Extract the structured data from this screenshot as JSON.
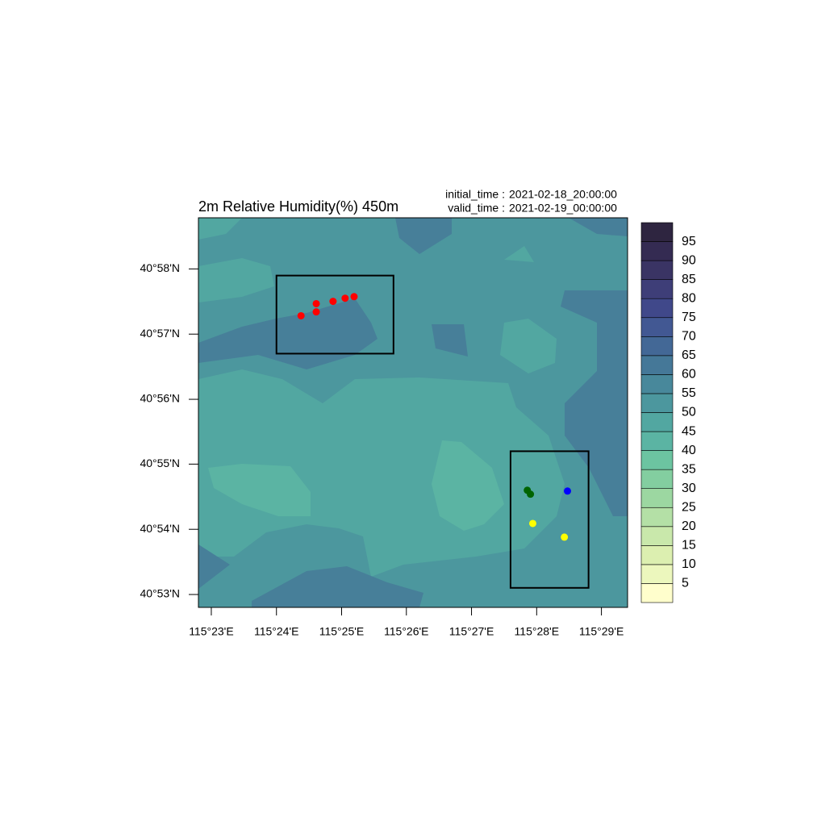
{
  "map": {
    "title": "2m Relative Humidity(%) 450m",
    "initial_time_label": "initial_time :",
    "initial_time": "2021-02-18_20:00:00",
    "valid_time_label": "valid_time  :",
    "valid_time": "2021-02-19_00:00:00",
    "lonlim": [
      115.38,
      115.49
    ],
    "latlim": [
      40.88,
      40.9798
    ],
    "xticks": [
      {
        "value": 115.3833,
        "label": "115°23'E"
      },
      {
        "value": 115.4,
        "label": "115°24'E"
      },
      {
        "value": 115.4167,
        "label": "115°25'E"
      },
      {
        "value": 115.4333,
        "label": "115°26'E"
      },
      {
        "value": 115.45,
        "label": "115°27'E"
      },
      {
        "value": 115.4667,
        "label": "115°28'E"
      },
      {
        "value": 115.4833,
        "label": "115°29'E"
      }
    ],
    "yticks": [
      {
        "value": 40.8833,
        "label": "40°53'N"
      },
      {
        "value": 40.9,
        "label": "40°54'N"
      },
      {
        "value": 40.9167,
        "label": "40°55'N"
      },
      {
        "value": 40.9333,
        "label": "40°56'N"
      },
      {
        "value": 40.95,
        "label": "40°57'N"
      },
      {
        "value": 40.9667,
        "label": "40°58'N"
      }
    ],
    "boxes": [
      {
        "lon": [
          115.4,
          115.43
        ],
        "lat": [
          40.945,
          40.965
        ]
      },
      {
        "lon": [
          115.46,
          115.48
        ],
        "lat": [
          40.885,
          40.92
        ]
      }
    ],
    "points": [
      {
        "lon": 115.4063,
        "lat": 40.9547,
        "color": "#ff0000"
      },
      {
        "lon": 115.4102,
        "lat": 40.9578,
        "color": "#ff0000"
      },
      {
        "lon": 115.4102,
        "lat": 40.9557,
        "color": "#ff0000"
      },
      {
        "lon": 115.4145,
        "lat": 40.9584,
        "color": "#ff0000"
      },
      {
        "lon": 115.4176,
        "lat": 40.9592,
        "color": "#ff0000"
      },
      {
        "lon": 115.4199,
        "lat": 40.9596,
        "color": "#ff0000"
      },
      {
        "lon": 115.4643,
        "lat": 40.91,
        "color": "#006400"
      },
      {
        "lon": 115.4651,
        "lat": 40.909,
        "color": "#006400"
      },
      {
        "lon": 115.4746,
        "lat": 40.9098,
        "color": "#0000ff"
      },
      {
        "lon": 115.4657,
        "lat": 40.9015,
        "color": "#ffff00"
      },
      {
        "lon": 115.4738,
        "lat": 40.898,
        "color": "#ffff00"
      }
    ],
    "colorbar": {
      "levels": [
        5,
        10,
        15,
        20,
        25,
        30,
        35,
        40,
        45,
        50,
        55,
        60,
        65,
        70,
        75,
        80,
        85,
        90,
        95
      ],
      "colors": [
        "#fffecc",
        "#ecf7bd",
        "#dcefb0",
        "#c9e8ab",
        "#b4e0a6",
        "#9cd7a1",
        "#83cea0",
        "#6cc4a1",
        "#5bb4a3",
        "#52a7a1",
        "#4c979e",
        "#48889b",
        "#457898",
        "#436896",
        "#425893",
        "#40488a",
        "#3e3e78",
        "#3a3464",
        "#342b52",
        "#2e2540"
      ]
    }
  }
}
